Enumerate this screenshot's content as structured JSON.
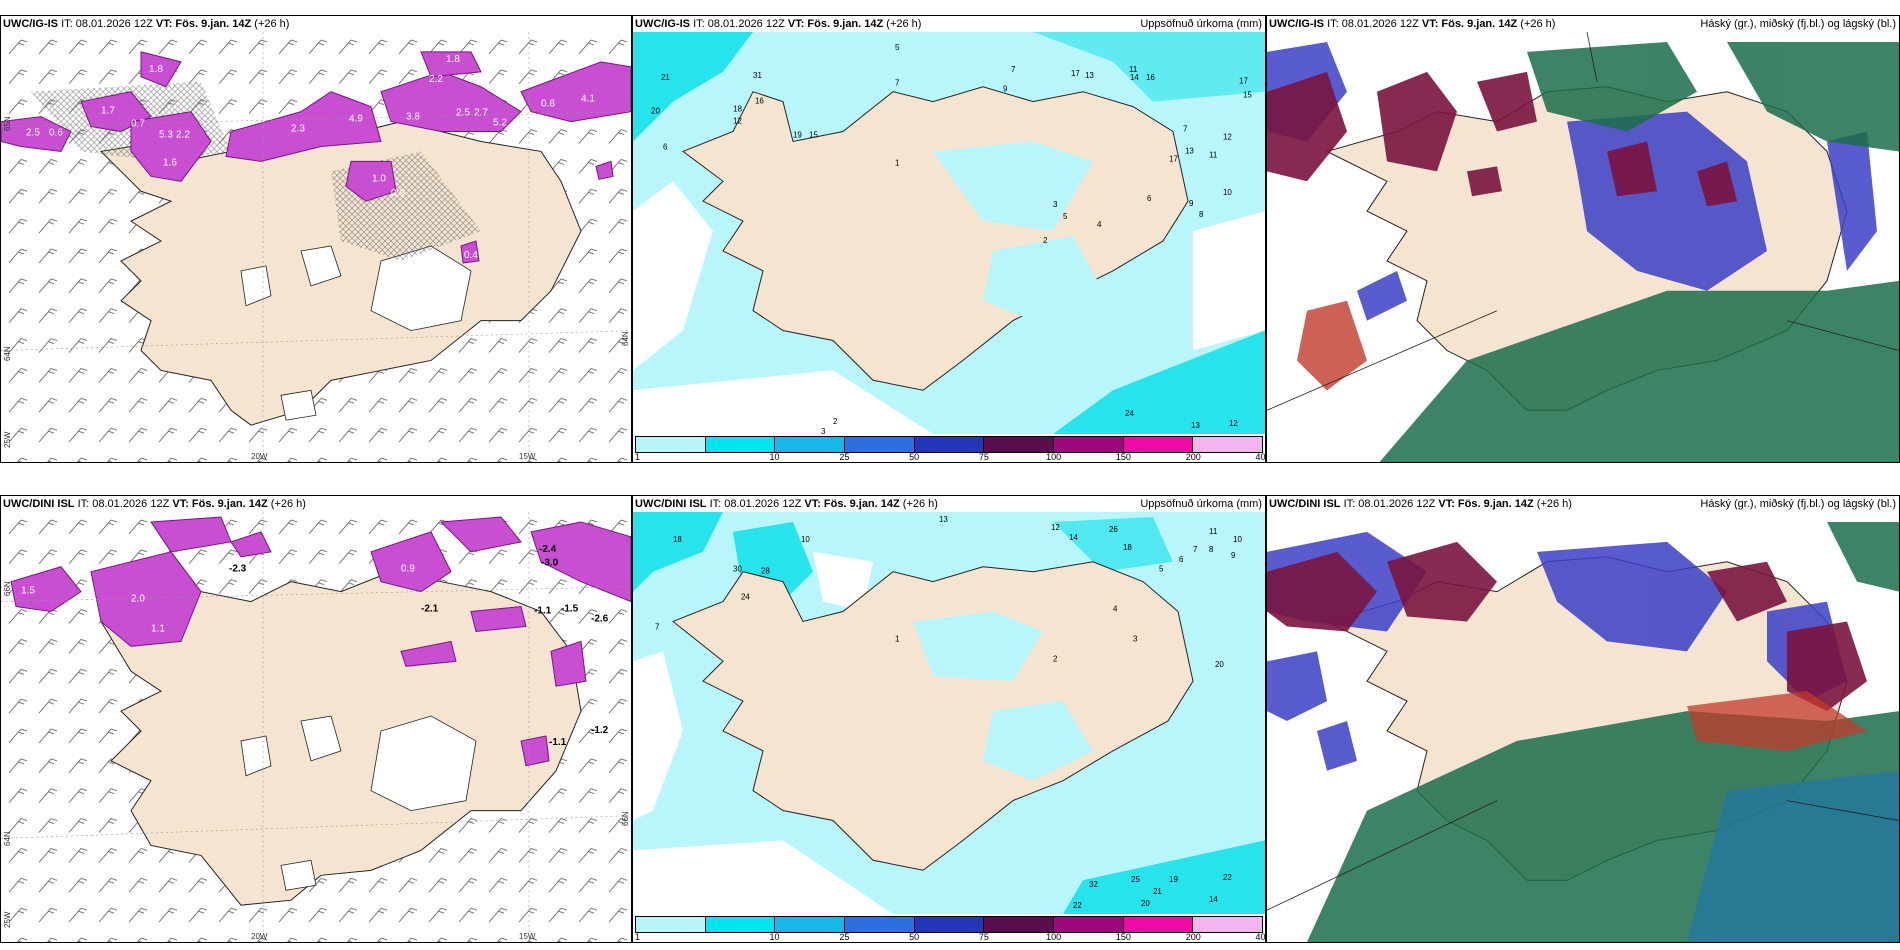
{
  "panels": [
    {
      "id": "top-left",
      "model": "UWC/IG-IS",
      "it_label": "IT: 08.01.2026 12Z",
      "vt_label": "VT: Fös. 9.jan. 14Z",
      "lead": "(+26 h)",
      "field": "",
      "type": "wind",
      "coords": {
        "lon1": "20W",
        "lon2": "15W",
        "lat1": "65N",
        "lat2": "64N",
        "lon0": "25W",
        "lat3": "64N"
      },
      "values": [
        "1.7",
        "0.7",
        "2.5",
        "0.6",
        "5.3",
        "2.2",
        "1.6",
        "1.8",
        "4.9",
        "3.8",
        "2.5",
        "2.7",
        "5.2",
        "3.3",
        "1.8",
        "2.2",
        "4.1",
        "0.8",
        "0.9",
        "0.4",
        "2.3",
        "1.0"
      ]
    },
    {
      "id": "top-middle",
      "model": "UWC/IG-IS",
      "it_label": "IT: 08.01.2026 12Z",
      "vt_label": "VT: Fös. 9.jan. 14Z",
      "lead": "(+26 h)",
      "field": "Uppsöfnuð úrkoma (mm)",
      "type": "precip",
      "values": [
        "21",
        "20",
        "31",
        "16",
        "18",
        "12",
        "19",
        "15",
        "6",
        "5",
        "7",
        "9",
        "7",
        "17",
        "13",
        "11",
        "14",
        "16",
        "17",
        "15",
        "12",
        "11",
        "10",
        "9",
        "8",
        "7",
        "6",
        "5",
        "4",
        "3",
        "2",
        "1",
        "13",
        "17",
        "24",
        "13",
        "12",
        "2",
        "3"
      ]
    },
    {
      "id": "top-right",
      "model": "UWC/IG-IS",
      "it_label": "IT: 08.01.2026 12Z",
      "vt_label": "VT: Fös. 9.jan. 14Z",
      "lead": "(+26 h)",
      "field": "Háský (gr.), miðský (fj.bl.) og lágský (bl.)",
      "type": "cloud"
    },
    {
      "id": "bottom-left",
      "model": "UWC/DINI ISL",
      "it_label": "IT: 08.01.2026 12Z",
      "vt_label": "VT: Fös. 9.jan. 14Z",
      "lead": "(+26 h)",
      "field": "",
      "type": "wind",
      "coords": {
        "lon1": "20W",
        "lon2": "15W",
        "lat1": "66N",
        "lat2": "64N",
        "lon0": "25W",
        "lat3": "66N"
      },
      "values": [
        "-2.4",
        "-3.0",
        "-2.3",
        "-2.1",
        "-1.1",
        "-1.5",
        "-2.6",
        "-1.2",
        "-1.1",
        "1.5",
        "2.0",
        "0.9",
        "1.1"
      ]
    },
    {
      "id": "bottom-middle",
      "model": "UWC/DINI ISL",
      "it_label": "IT: 08.01.2026 12Z",
      "vt_label": "VT: Fös. 9.jan. 14Z",
      "lead": "(+26 h)",
      "field": "Uppsöfnuð úrkoma (mm)",
      "type": "precip",
      "values": [
        "18",
        "30",
        "24",
        "28",
        "10",
        "7",
        "13",
        "12",
        "14",
        "26",
        "18",
        "11",
        "10",
        "9",
        "8",
        "7",
        "6",
        "5",
        "4",
        "3",
        "2",
        "1",
        "20",
        "32",
        "25",
        "19",
        "22",
        "21",
        "20",
        "14",
        "22"
      ]
    },
    {
      "id": "bottom-right",
      "model": "UWC/DINI ISL",
      "it_label": "IT: 08.01.2026 12Z",
      "vt_label": "VT: Fös. 9.jan. 14Z",
      "lead": "(+26 h)",
      "field": "Háský (gr.), miðský (fj.bl.) og lágský (bl.)",
      "type": "cloud"
    }
  ],
  "colorbar": {
    "labels": [
      "1",
      "10",
      "25",
      "50",
      "75",
      "100",
      "150",
      "200",
      "400"
    ],
    "colors": [
      "#b7f5f9",
      "#00e5ee",
      "#18b8e8",
      "#2e6fe0",
      "#2436b8",
      "#5a0d4d",
      "#9a0a7d",
      "#ee0aa5",
      "#f2b5ee"
    ]
  },
  "colors": {
    "land": "#f4e4d0",
    "sea": "#ffffff",
    "precip_light": "#b9f6fb",
    "precip_mid": "#27e3ec",
    "wind_fill": "#c84fd2",
    "wind_dark": "#7a1682",
    "cloud_high": "#1b6d4a",
    "cloud_mid": "#7a1440",
    "cloud_low": "#3b3fc6"
  }
}
